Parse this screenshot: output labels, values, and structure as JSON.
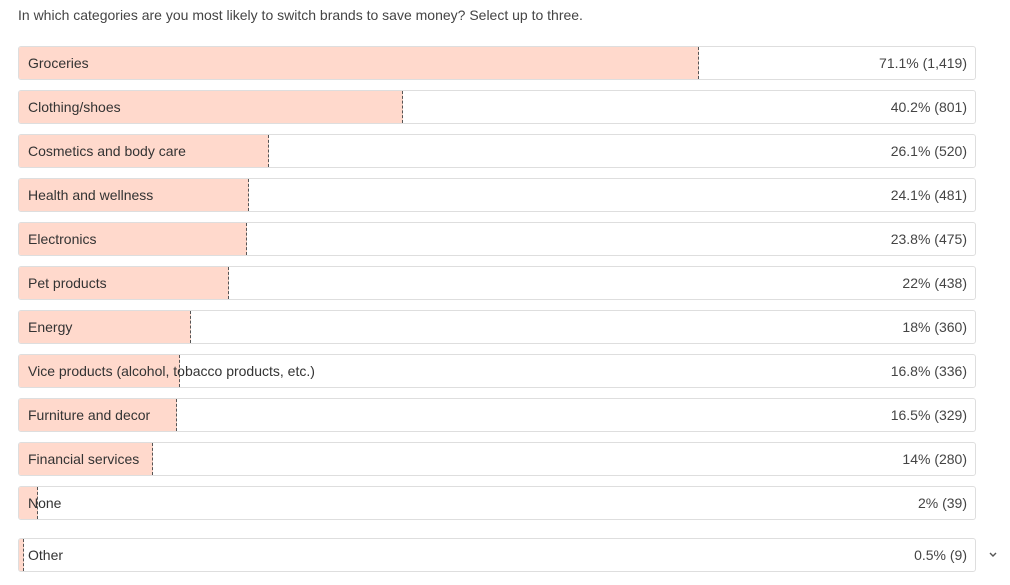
{
  "chart_data": {
    "type": "bar",
    "orientation": "horizontal",
    "title": "In which categories are you most likely to switch brands to save money? Select up to three.",
    "categories": [
      "Groceries",
      "Clothing/shoes",
      "Cosmetics and body care",
      "Health and wellness",
      "Electronics",
      "Pet products",
      "Energy",
      "Vice products (alcohol, tobacco products, etc.)",
      "Furniture and decor",
      "Financial services",
      "None",
      "Other"
    ],
    "values": [
      71.1,
      40.2,
      26.1,
      24.1,
      23.8,
      22,
      18,
      16.8,
      16.5,
      14,
      2,
      0.5
    ],
    "value_labels": [
      "71.1% (1,419)",
      "40.2% (801)",
      "26.1% (520)",
      "24.1% (481)",
      "23.8% (475)",
      "22% (438)",
      "18% (360)",
      "16.8% (336)",
      "16.5% (329)",
      "14% (280)",
      "2% (39)",
      "0.5% (9)"
    ],
    "color": "#ffd9cc",
    "xlim": [
      0,
      100
    ]
  }
}
